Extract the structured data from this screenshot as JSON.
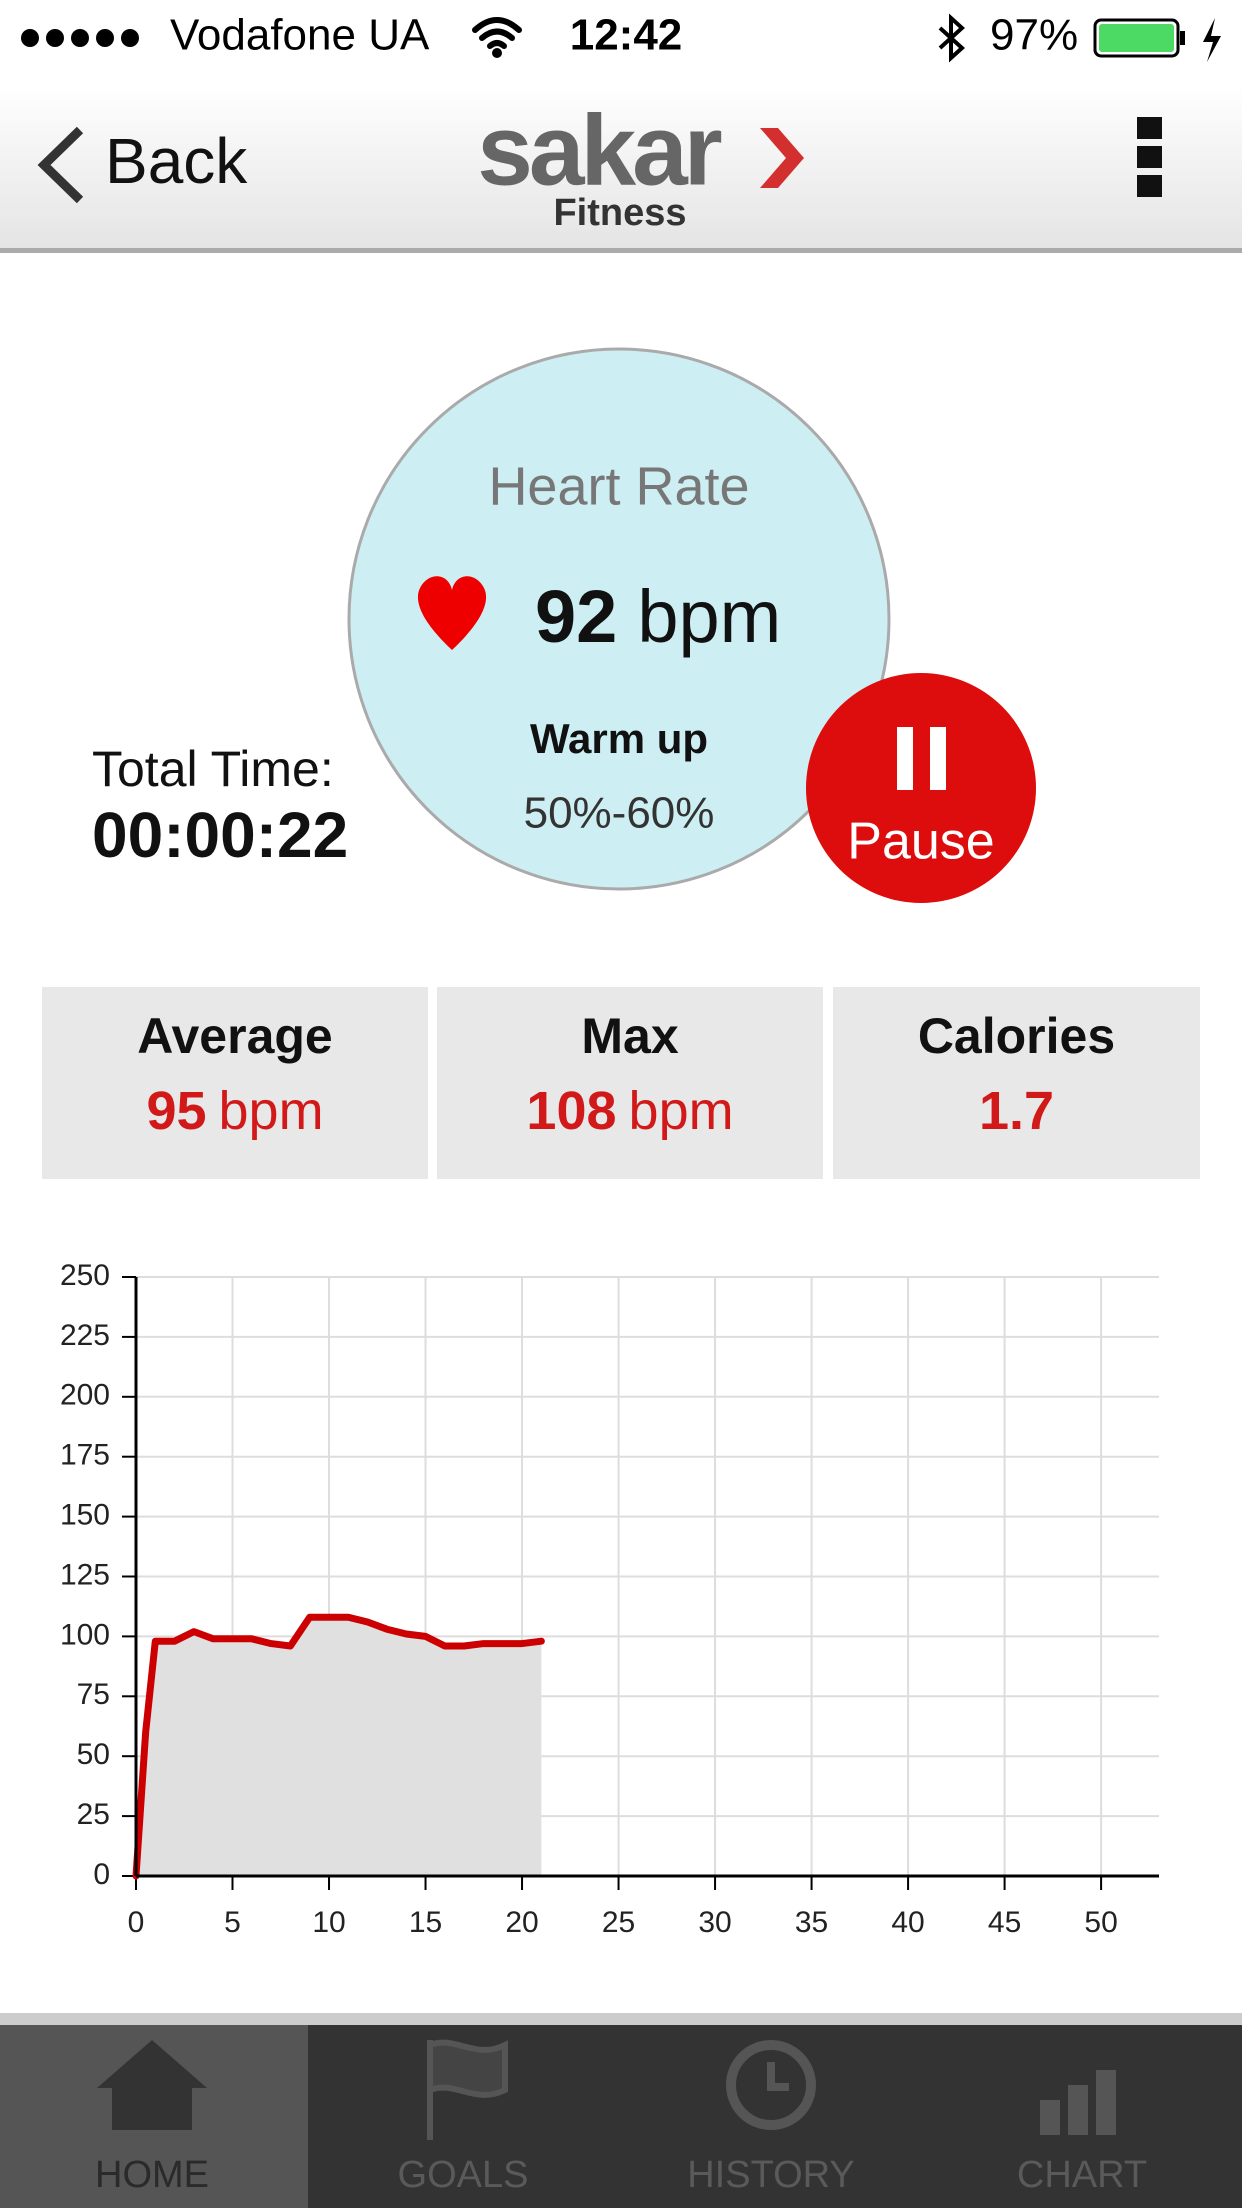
{
  "status_bar": {
    "carrier": "Vodafone UA",
    "time": "12:42",
    "battery": "97%"
  },
  "nav": {
    "back": "Back",
    "logo": "sakar",
    "subtitle": "Fitness"
  },
  "heart": {
    "label": "Heart Rate",
    "value": "92",
    "unit": "bpm",
    "zone": "Warm up",
    "range": "50%-60%"
  },
  "pause": "Pause",
  "total_time": {
    "label": "Total Time:",
    "value": "00:00:22"
  },
  "stats": [
    {
      "label": "Average",
      "value": "95",
      "unit": "bpm"
    },
    {
      "label": "Max",
      "value": "108",
      "unit": "bpm"
    },
    {
      "label": "Calories",
      "value": "1.7"
    }
  ],
  "chart_data": {
    "type": "line",
    "x": [
      0,
      0.5,
      1,
      2,
      3,
      4,
      5,
      6,
      7,
      8,
      9,
      10,
      11,
      12,
      13,
      14,
      15,
      16,
      17,
      18,
      19,
      20,
      21
    ],
    "values": [
      0,
      60,
      98,
      98,
      102,
      99,
      99,
      99,
      97,
      96,
      108,
      108,
      108,
      106,
      103,
      101,
      100,
      96,
      96,
      97,
      97,
      97,
      98
    ],
    "color": "#cc0000",
    "area_color": "#e0e0e0",
    "xlim": [
      0,
      53
    ],
    "ylim": [
      0,
      250
    ],
    "xticks": [
      0,
      5,
      10,
      15,
      20,
      25,
      30,
      35,
      40,
      45,
      50
    ],
    "yticks": [
      0,
      25,
      50,
      75,
      100,
      125,
      150,
      175,
      200,
      225,
      250
    ],
    "grid": true
  },
  "tabs": [
    "HOME",
    "GOALS",
    "HISTORY",
    "CHART"
  ]
}
